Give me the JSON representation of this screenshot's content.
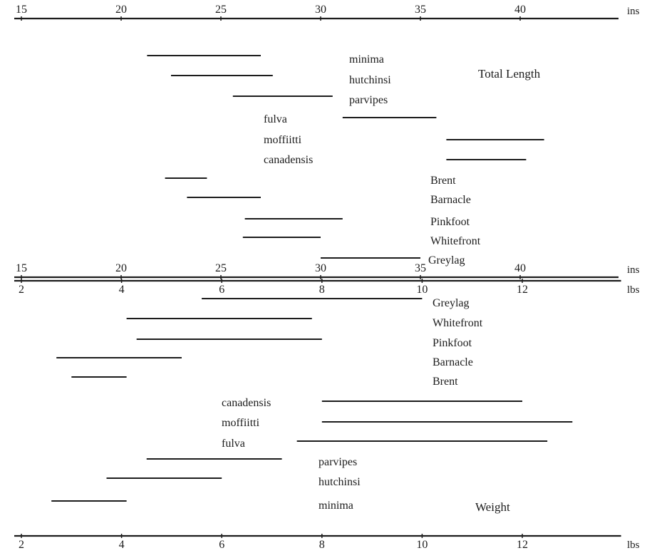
{
  "colors": {
    "ink": "#1c1c1c",
    "background": "#ffffff"
  },
  "chart_data": [
    {
      "type": "range",
      "title": "Total Length",
      "axes": [
        {
          "unit": "ins",
          "range": [
            15,
            45
          ],
          "ticks": [
            15,
            20,
            25,
            30,
            35,
            40
          ],
          "tick_labels": [
            "15",
            "20",
            "25",
            "30",
            "35",
            "40"
          ],
          "position": "top"
        },
        {
          "unit": "ins",
          "range": [
            15,
            45
          ],
          "ticks": [
            15,
            20,
            25,
            30,
            35,
            40
          ],
          "tick_labels": [
            "15",
            "20",
            "25",
            "30",
            "35",
            "40"
          ],
          "position": "middle"
        }
      ],
      "series": [
        {
          "name": "minima",
          "range": [
            21.3,
            27.0
          ]
        },
        {
          "name": "hutchinsi",
          "range": [
            22.5,
            27.6
          ]
        },
        {
          "name": "parvipes",
          "range": [
            25.6,
            30.6
          ]
        },
        {
          "name": "fulva",
          "range": [
            31.1,
            35.8
          ]
        },
        {
          "name": "moffiitti",
          "range": [
            36.3,
            41.2
          ]
        },
        {
          "name": "canadensis",
          "range": [
            36.3,
            40.3
          ]
        },
        {
          "name": "Brent",
          "range": [
            22.2,
            24.3
          ]
        },
        {
          "name": "Barnacle",
          "range": [
            23.3,
            27.0
          ]
        },
        {
          "name": "Pinkfoot",
          "range": [
            26.2,
            31.1
          ]
        },
        {
          "name": "Whitefront",
          "range": [
            26.1,
            30.0
          ]
        },
        {
          "name": "Greylag",
          "range": [
            30.0,
            35.0
          ]
        }
      ]
    },
    {
      "type": "range",
      "title": "Weight",
      "axes": [
        {
          "unit": "lbs",
          "range": [
            2,
            14
          ],
          "ticks": [
            2,
            4,
            6,
            8,
            10,
            12
          ],
          "tick_labels": [
            "2",
            "4",
            "6",
            "8",
            "10",
            "12"
          ],
          "position": "middle"
        },
        {
          "unit": "lbs",
          "range": [
            2,
            14
          ],
          "ticks": [
            2,
            4,
            6,
            8,
            10,
            12
          ],
          "tick_labels": [
            "2",
            "4",
            "6",
            "8",
            "10",
            "12"
          ],
          "position": "bottom"
        }
      ],
      "series": [
        {
          "name": "Greylag",
          "range": [
            5.6,
            10.0
          ]
        },
        {
          "name": "Whitefront",
          "range": [
            4.1,
            7.8
          ]
        },
        {
          "name": "Pinkfoot",
          "range": [
            4.3,
            8.0
          ]
        },
        {
          "name": "Barnacle",
          "range": [
            2.7,
            5.2
          ]
        },
        {
          "name": "Brent",
          "range": [
            3.0,
            4.1
          ]
        },
        {
          "name": "canadensis",
          "range": [
            8.0,
            12.0
          ]
        },
        {
          "name": "moffiitti",
          "range": [
            8.0,
            13.0
          ]
        },
        {
          "name": "fulva",
          "range": [
            7.5,
            12.5
          ]
        },
        {
          "name": "parvipes",
          "range": [
            4.5,
            7.2
          ]
        },
        {
          "name": "hutchinsi",
          "range": [
            3.7,
            6.0
          ]
        },
        {
          "name": "minima",
          "range": [
            2.6,
            4.1
          ]
        }
      ]
    }
  ]
}
